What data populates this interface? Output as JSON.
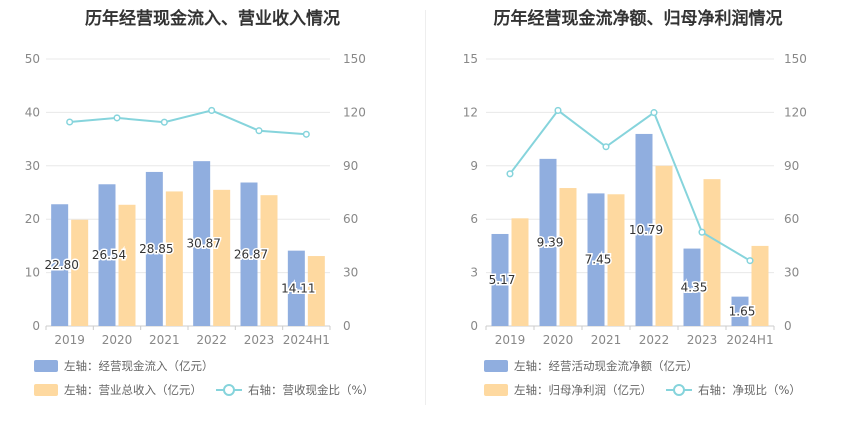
{
  "colors": {
    "bar_left": "#90aedf",
    "bar_right": "#fed9a0",
    "line": "#86d4dc"
  },
  "chart_data": [
    {
      "type": "bar",
      "title": "历年经营现金流入、营业收入情况",
      "categories": [
        "2019",
        "2020",
        "2021",
        "2022",
        "2023",
        "2024H1"
      ],
      "ylim_left": [
        0,
        50
      ],
      "yticks_left": [
        0,
        10,
        20,
        30,
        40,
        50
      ],
      "ylim_right": [
        0,
        150
      ],
      "yticks_right": [
        0,
        30,
        60,
        90,
        120,
        150
      ],
      "series": [
        {
          "name": "左轴：经营现金流入（亿元）",
          "kind": "bar",
          "axis": "left",
          "values": [
            22.8,
            26.54,
            28.85,
            30.87,
            26.87,
            14.11
          ],
          "labels": [
            "22.80",
            "26.54",
            "28.85",
            "30.87",
            "26.87",
            "14.11"
          ]
        },
        {
          "name": "左轴：营业总收入（亿元）",
          "kind": "bar",
          "axis": "left",
          "values": [
            19.9,
            22.7,
            25.2,
            25.5,
            24.5,
            13.1
          ]
        },
        {
          "name": "右轴：营收现金比（%）",
          "kind": "line",
          "axis": "right",
          "values": [
            114.6,
            116.9,
            114.5,
            121.1,
            109.7,
            107.7
          ]
        }
      ],
      "legend": "bottom-left",
      "grid": true
    },
    {
      "type": "bar",
      "title": "历年经营现金流净额、归母净利润情况",
      "categories": [
        "2019",
        "2020",
        "2021",
        "2022",
        "2023",
        "2024H1"
      ],
      "ylim_left": [
        0,
        15
      ],
      "yticks_left": [
        0,
        3,
        6,
        9,
        12,
        15
      ],
      "ylim_right": [
        0,
        150
      ],
      "yticks_right": [
        0,
        30,
        60,
        90,
        120,
        150
      ],
      "series": [
        {
          "name": "左轴：经营活动现金流净额（亿元）",
          "kind": "bar",
          "axis": "left",
          "values": [
            5.17,
            9.39,
            7.45,
            10.79,
            4.35,
            1.65
          ],
          "labels": [
            "5.17",
            "9.39",
            "7.45",
            "10.79",
            "4.35",
            "1.65"
          ]
        },
        {
          "name": "左轴：归母净利润（亿元）",
          "kind": "bar",
          "axis": "left",
          "values": [
            6.05,
            7.75,
            7.4,
            9.0,
            8.25,
            4.5
          ]
        },
        {
          "name": "右轴：净现比（%）",
          "kind": "line",
          "axis": "right",
          "values": [
            85.5,
            121.1,
            100.7,
            119.9,
            52.7,
            36.7
          ]
        }
      ],
      "legend": "bottom-left",
      "grid": true
    }
  ]
}
